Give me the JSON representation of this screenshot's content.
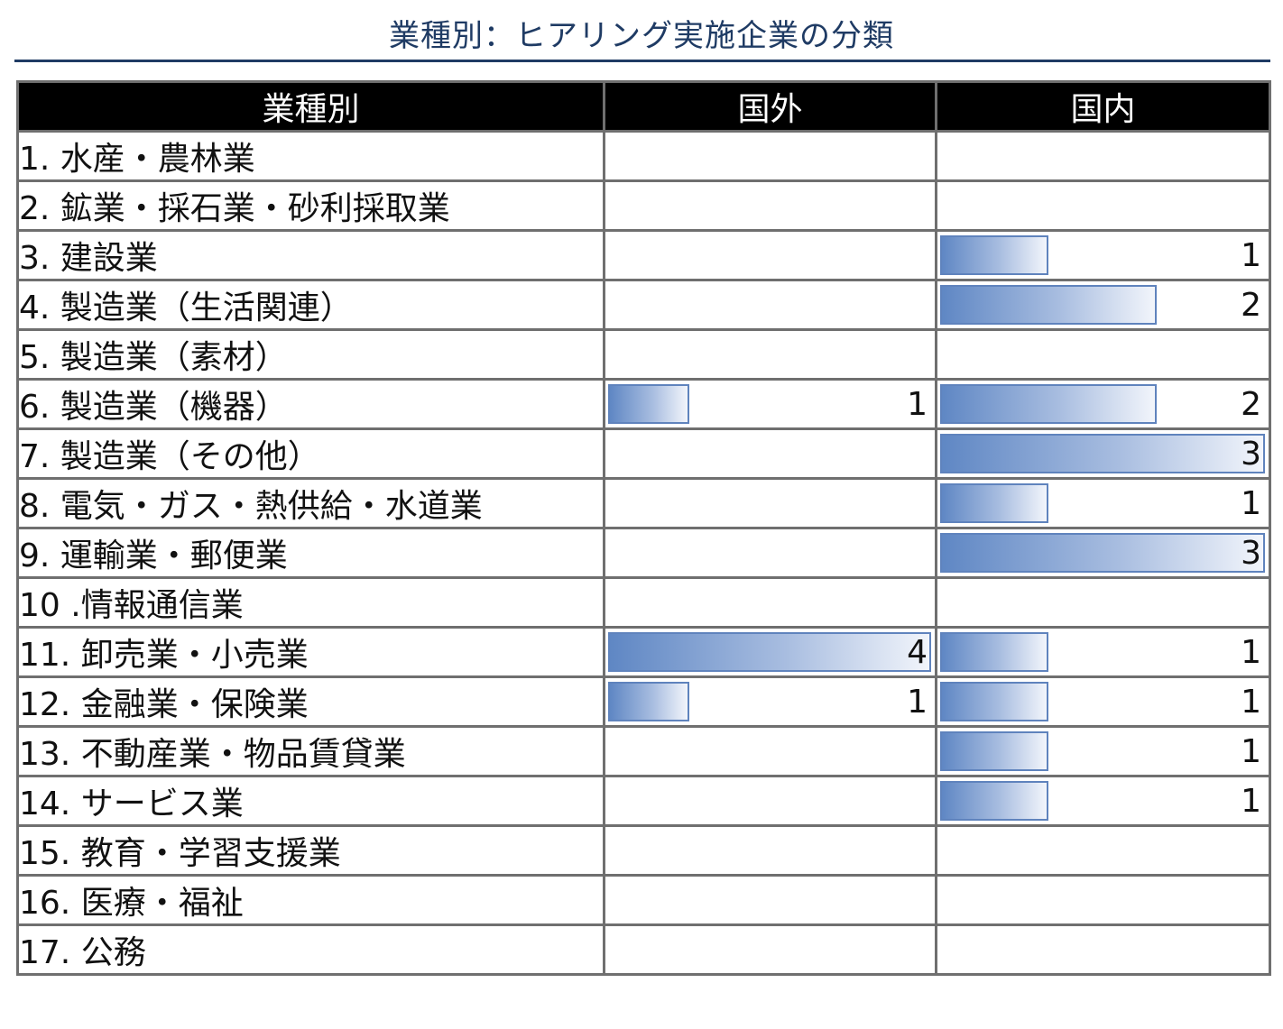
{
  "title": "業種別：ヒアリング実施企業の分類",
  "chart_data": {
    "type": "table",
    "title": "業種別：ヒアリング実施企業の分類",
    "columns": [
      "業種別",
      "国外",
      "国内"
    ],
    "max_value": 3,
    "categories": [
      "1. 水産・農林業",
      "2. 鉱業・採石業・砂利採取業",
      "3. 建設業",
      "4. 製造業（生活関連）",
      "5. 製造業（素材）",
      "6. 製造業（機器）",
      "7. 製造業（その他）",
      "8. 電気・ガス・熱供給・水道業",
      "9. 運輸業・郵便業",
      "10 .情報通信業",
      "11. 卸売業・小売業",
      "12. 金融業・保険業",
      "13. 不動産業・物品賃貸業",
      "14. サービス業",
      "15. 教育・学習支援業",
      "16. 医療・福祉",
      "17. 公務"
    ],
    "series": [
      {
        "name": "国外",
        "values": [
          null,
          null,
          null,
          null,
          null,
          1,
          null,
          null,
          null,
          null,
          4,
          1,
          null,
          null,
          null,
          null,
          null
        ]
      },
      {
        "name": "国内",
        "values": [
          null,
          null,
          1,
          2,
          null,
          2,
          3,
          1,
          3,
          null,
          1,
          1,
          1,
          1,
          null,
          null,
          null
        ]
      }
    ],
    "colors": {
      "bar_fill_start": "#5f87c4",
      "bar_fill_end": "#f2f5fb",
      "bar_border": "#5f83bd",
      "header_bg": "#000000",
      "title": "#1f3b64"
    }
  }
}
